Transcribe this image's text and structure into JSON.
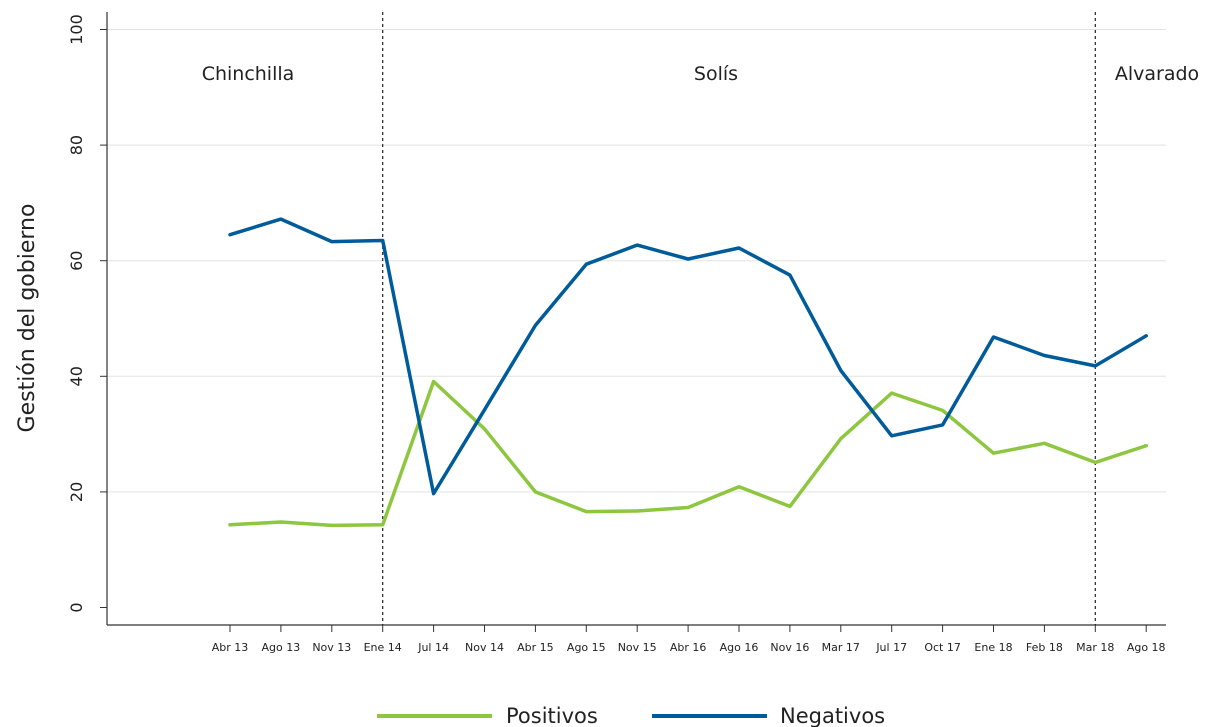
{
  "chart_data": {
    "type": "line",
    "ylabel": "Gestión del gobierno",
    "xlabel": "",
    "ylim": [
      0,
      100
    ],
    "yticks": [
      0,
      20,
      40,
      60,
      80,
      100
    ],
    "grid": "horizontal",
    "categories": [
      "Abr 13",
      "Ago 13",
      "Nov 13",
      "Ene 14",
      "Jul 14",
      "Nov 14",
      "Abr 15",
      "Ago 15",
      "Nov 15",
      "Abr 16",
      "Ago 16",
      "Nov 16",
      "Mar 17",
      "Jul 17",
      "Oct 17",
      "Ene 18",
      "Feb 18",
      "Mar 18",
      "Ago 18"
    ],
    "series": [
      {
        "name": "Positivos",
        "color": "#8dc63f",
        "values": [
          14.3,
          14.8,
          14.2,
          14.3,
          39.1,
          30.9,
          20.0,
          16.6,
          16.7,
          17.3,
          20.9,
          17.5,
          29.2,
          37.1,
          34.1,
          26.7,
          28.4,
          25.1,
          28.0
        ]
      },
      {
        "name": "Negativos",
        "color": "#005b9a",
        "values": [
          64.5,
          67.2,
          63.3,
          63.5,
          19.7,
          34.2,
          48.8,
          59.4,
          62.7,
          60.3,
          62.2,
          57.5,
          41.0,
          29.7,
          31.6,
          46.8,
          43.6,
          41.8,
          47.0
        ]
      }
    ],
    "periods": [
      {
        "label": "Chinchilla"
      },
      {
        "label": "Solís"
      },
      {
        "label": "Alvarado"
      }
    ],
    "dividers_after": [
      "Ene 14",
      "Mar 18"
    ],
    "legend": "bottom-center"
  }
}
